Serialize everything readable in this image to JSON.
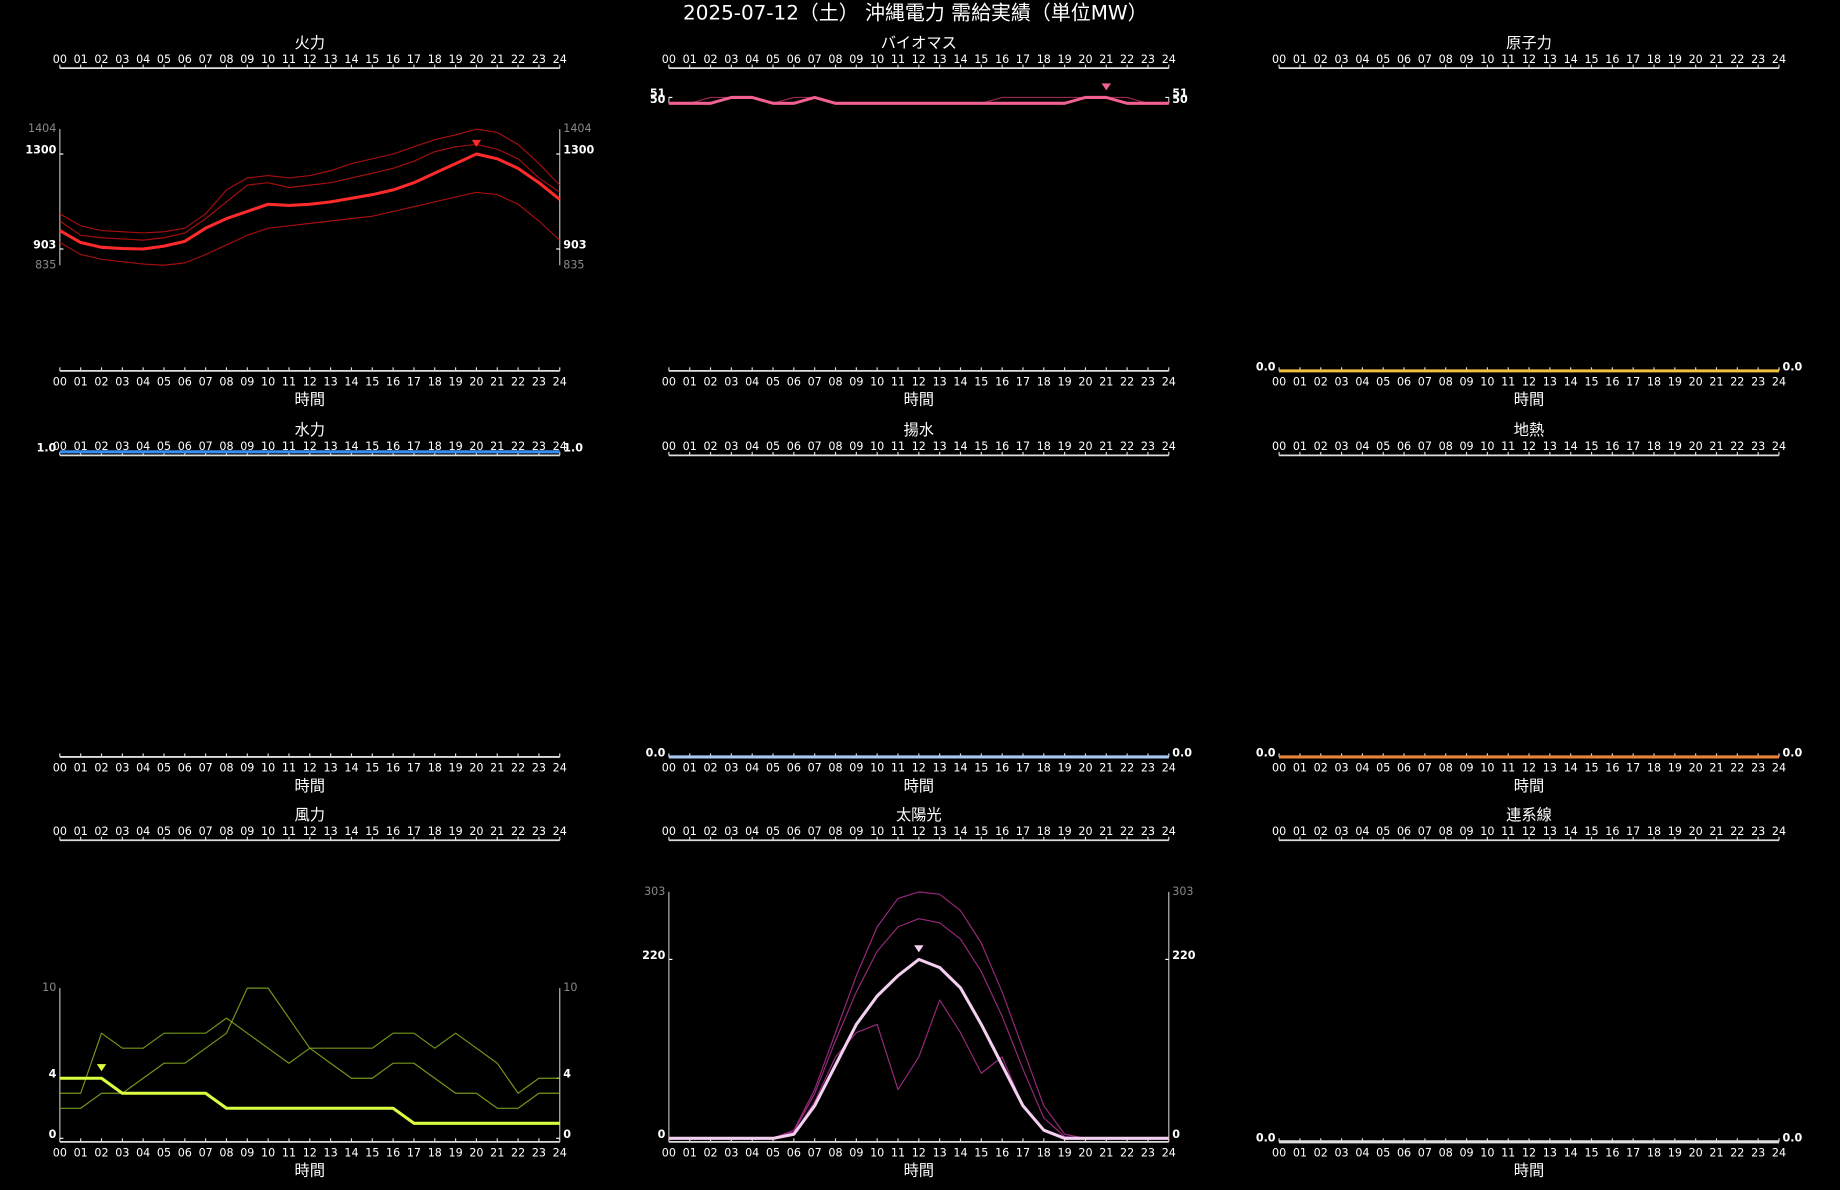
{
  "title": "2025-07-12（土） 沖縄電力 需給実績（単位MW）",
  "chart_data": [
    {
      "type": "line",
      "title": "火力",
      "xlabel": "時間",
      "categories": [
        "00",
        "01",
        "02",
        "03",
        "04",
        "05",
        "06",
        "07",
        "08",
        "09",
        "10",
        "11",
        "12",
        "13",
        "14",
        "15",
        "16",
        "17",
        "18",
        "19",
        "20",
        "21",
        "22",
        "23",
        "24"
      ],
      "ylim": [
        835,
        1404
      ],
      "yticks": [
        903,
        1300
      ],
      "series": [
        {
          "color": "#ff2a2a",
          "values": [
            980,
            930,
            910,
            905,
            903,
            915,
            935,
            990,
            1030,
            1060,
            1090,
            1085,
            1090,
            1100,
            1115,
            1130,
            1150,
            1180,
            1220,
            1260,
            1300,
            1280,
            1240,
            1180,
            1110
          ]
        },
        {
          "color": "#c01010",
          "values": [
            1050,
            1000,
            980,
            975,
            970,
            975,
            990,
            1050,
            1150,
            1200,
            1210,
            1200,
            1210,
            1230,
            1260,
            1280,
            1300,
            1330,
            1360,
            1380,
            1404,
            1390,
            1340,
            1260,
            1170
          ]
        },
        {
          "color": "#c01010",
          "values": [
            930,
            880,
            860,
            850,
            840,
            835,
            845,
            880,
            920,
            960,
            990,
            1000,
            1010,
            1020,
            1030,
            1040,
            1060,
            1080,
            1100,
            1120,
            1140,
            1130,
            1090,
            1020,
            940
          ]
        },
        {
          "color": "#c01010",
          "values": [
            1020,
            960,
            950,
            945,
            940,
            950,
            970,
            1030,
            1100,
            1170,
            1180,
            1160,
            1170,
            1180,
            1200,
            1220,
            1240,
            1270,
            1310,
            1330,
            1340,
            1320,
            1280,
            1200,
            1140
          ]
        }
      ]
    },
    {
      "type": "line",
      "title": "バイオマス",
      "xlabel": "時間",
      "categories": [
        "00",
        "01",
        "02",
        "03",
        "04",
        "05",
        "06",
        "07",
        "08",
        "09",
        "10",
        "11",
        "12",
        "13",
        "14",
        "15",
        "16",
        "17",
        "18",
        "19",
        "20",
        "21",
        "22",
        "23",
        "24"
      ],
      "ylim": [
        50,
        51
      ],
      "yticks": [
        50,
        51
      ],
      "series": [
        {
          "color": "#f06090",
          "values": [
            50,
            50,
            50,
            51,
            51,
            50,
            50,
            51,
            50,
            50,
            50,
            50,
            50,
            50,
            50,
            50,
            50,
            50,
            50,
            50,
            51,
            51,
            50,
            50,
            50
          ]
        },
        {
          "color": "#b03060",
          "values": [
            50,
            50,
            51,
            51,
            51,
            50,
            51,
            51,
            50,
            50,
            50,
            50,
            50,
            50,
            50,
            50,
            51,
            51,
            51,
            51,
            51,
            51,
            51,
            50,
            50
          ]
        }
      ]
    },
    {
      "type": "line",
      "title": "原子力",
      "xlabel": "時間",
      "categories": [
        "00",
        "01",
        "02",
        "03",
        "04",
        "05",
        "06",
        "07",
        "08",
        "09",
        "10",
        "11",
        "12",
        "13",
        "14",
        "15",
        "16",
        "17",
        "18",
        "19",
        "20",
        "21",
        "22",
        "23",
        "24"
      ],
      "yticks": [
        {
          "value": 0,
          "label": "0.0"
        }
      ],
      "series": [
        {
          "color": "#f0c040",
          "values": [
            0,
            0,
            0,
            0,
            0,
            0,
            0,
            0,
            0,
            0,
            0,
            0,
            0,
            0,
            0,
            0,
            0,
            0,
            0,
            0,
            0,
            0,
            0,
            0,
            0
          ]
        }
      ]
    },
    {
      "type": "line",
      "title": "水力",
      "xlabel": "時間",
      "categories": [
        "00",
        "01",
        "02",
        "03",
        "04",
        "05",
        "06",
        "07",
        "08",
        "09",
        "10",
        "11",
        "12",
        "13",
        "14",
        "15",
        "16",
        "17",
        "18",
        "19",
        "20",
        "21",
        "22",
        "23",
        "24"
      ],
      "yticks": [
        {
          "value": 1,
          "label": "1.0"
        }
      ],
      "series": [
        {
          "color": "#3a8ef0",
          "values": [
            1,
            1,
            1,
            1,
            1,
            1,
            1,
            1,
            1,
            1,
            1,
            1,
            1,
            1,
            1,
            1,
            1,
            1,
            1,
            1,
            1,
            1,
            1,
            1,
            1
          ]
        }
      ]
    },
    {
      "type": "line",
      "title": "揚水",
      "xlabel": "時間",
      "categories": [
        "00",
        "01",
        "02",
        "03",
        "04",
        "05",
        "06",
        "07",
        "08",
        "09",
        "10",
        "11",
        "12",
        "13",
        "14",
        "15",
        "16",
        "17",
        "18",
        "19",
        "20",
        "21",
        "22",
        "23",
        "24"
      ],
      "yticks": [
        {
          "value": 0,
          "label": "0.0"
        }
      ],
      "series": [
        {
          "color": "#a8c8f0",
          "values": [
            0,
            0,
            0,
            0,
            0,
            0,
            0,
            0,
            0,
            0,
            0,
            0,
            0,
            0,
            0,
            0,
            0,
            0,
            0,
            0,
            0,
            0,
            0,
            0,
            0
          ]
        }
      ]
    },
    {
      "type": "line",
      "title": "地熱",
      "xlabel": "時間",
      "categories": [
        "00",
        "01",
        "02",
        "03",
        "04",
        "05",
        "06",
        "07",
        "08",
        "09",
        "10",
        "11",
        "12",
        "13",
        "14",
        "15",
        "16",
        "17",
        "18",
        "19",
        "20",
        "21",
        "22",
        "23",
        "24"
      ],
      "yticks": [
        {
          "value": 0,
          "label": "0.0"
        }
      ],
      "series": [
        {
          "color": "#e8843a",
          "values": [
            0,
            0,
            0,
            0,
            0,
            0,
            0,
            0,
            0,
            0,
            0,
            0,
            0,
            0,
            0,
            0,
            0,
            0,
            0,
            0,
            0,
            0,
            0,
            0,
            0
          ]
        }
      ]
    },
    {
      "type": "line",
      "title": "風力",
      "xlabel": "時間",
      "categories": [
        "00",
        "01",
        "02",
        "03",
        "04",
        "05",
        "06",
        "07",
        "08",
        "09",
        "10",
        "11",
        "12",
        "13",
        "14",
        "15",
        "16",
        "17",
        "18",
        "19",
        "20",
        "21",
        "22",
        "23",
        "24"
      ],
      "ylim": [
        0,
        10
      ],
      "yticks": [
        0,
        4
      ],
      "series": [
        {
          "color": "#d8ff40",
          "values": [
            4,
            4,
            4,
            3,
            3,
            3,
            3,
            3,
            2,
            2,
            2,
            2,
            2,
            2,
            2,
            2,
            2,
            1,
            1,
            1,
            1,
            1,
            1,
            1,
            1
          ]
        },
        {
          "color": "#88b020",
          "values": [
            3,
            3,
            7,
            6,
            6,
            7,
            7,
            7,
            8,
            7,
            6,
            5,
            6,
            6,
            6,
            6,
            7,
            7,
            6,
            7,
            6,
            5,
            3,
            4,
            4
          ]
        },
        {
          "color": "#88b020",
          "values": [
            2,
            2,
            3,
            3,
            4,
            5,
            5,
            6,
            7,
            10,
            10,
            8,
            6,
            5,
            4,
            4,
            5,
            5,
            4,
            3,
            3,
            2,
            2,
            3,
            3
          ]
        }
      ]
    },
    {
      "type": "line",
      "title": "太陽光",
      "xlabel": "時間",
      "categories": [
        "00",
        "01",
        "02",
        "03",
        "04",
        "05",
        "06",
        "07",
        "08",
        "09",
        "10",
        "11",
        "12",
        "13",
        "14",
        "15",
        "16",
        "17",
        "18",
        "19",
        "20",
        "21",
        "22",
        "23",
        "24"
      ],
      "ylim": [
        0,
        303
      ],
      "yticks": [
        0,
        220
      ],
      "series": [
        {
          "color": "#f4d0f0",
          "values": [
            0,
            0,
            0,
            0,
            0,
            0,
            5,
            40,
            90,
            140,
            175,
            200,
            220,
            210,
            185,
            140,
            90,
            40,
            10,
            0,
            0,
            0,
            0,
            0,
            0
          ]
        },
        {
          "color": "#b03090",
          "values": [
            0,
            0,
            0,
            0,
            0,
            0,
            10,
            60,
            130,
            200,
            260,
            295,
            303,
            300,
            280,
            240,
            180,
            110,
            40,
            5,
            0,
            0,
            0,
            0,
            0
          ]
        },
        {
          "color": "#b03090",
          "values": [
            0,
            0,
            0,
            0,
            0,
            0,
            5,
            45,
            100,
            130,
            140,
            60,
            100,
            170,
            130,
            80,
            100,
            40,
            10,
            0,
            0,
            0,
            0,
            0,
            0
          ]
        },
        {
          "color": "#b03090",
          "values": [
            0,
            0,
            0,
            0,
            0,
            0,
            8,
            55,
            120,
            180,
            230,
            260,
            270,
            265,
            245,
            205,
            150,
            85,
            25,
            2,
            0,
            0,
            0,
            0,
            0
          ]
        }
      ]
    },
    {
      "type": "line",
      "title": "連系線",
      "xlabel": "時間",
      "categories": [
        "00",
        "01",
        "02",
        "03",
        "04",
        "05",
        "06",
        "07",
        "08",
        "09",
        "10",
        "11",
        "12",
        "13",
        "14",
        "15",
        "16",
        "17",
        "18",
        "19",
        "20",
        "21",
        "22",
        "23",
        "24"
      ],
      "yticks": [
        {
          "value": 0,
          "label": "0.0"
        }
      ],
      "series": [
        {
          "color": "#e0e0e0",
          "values": [
            0,
            0,
            0,
            0,
            0,
            0,
            0,
            0,
            0,
            0,
            0,
            0,
            0,
            0,
            0,
            0,
            0,
            0,
            0,
            0,
            0,
            0,
            0,
            0,
            0
          ]
        }
      ]
    }
  ]
}
